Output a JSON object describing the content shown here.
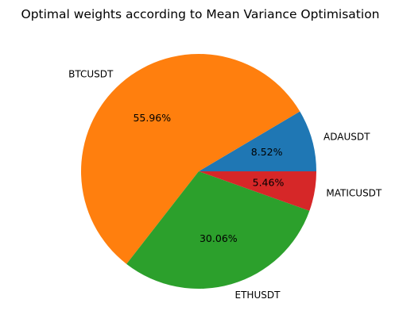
{
  "chart_data": {
    "type": "pie",
    "title": "Optimal weights according to Mean Variance Optimisation",
    "start_angle_deg": 0,
    "direction": "counterclockwise",
    "slices": [
      {
        "label": "ADAUSDT",
        "value": 8.52,
        "pct_label": "8.52%",
        "color": "#1f77b4"
      },
      {
        "label": "BTCUSDT",
        "value": 55.96,
        "pct_label": "55.96%",
        "color": "#ff7f0e"
      },
      {
        "label": "ETHUSDT",
        "value": 30.06,
        "pct_label": "30.06%",
        "color": "#2ca02c"
      },
      {
        "label": "MATICUSDT",
        "value": 5.46,
        "pct_label": "5.46%",
        "color": "#d62728"
      }
    ]
  }
}
